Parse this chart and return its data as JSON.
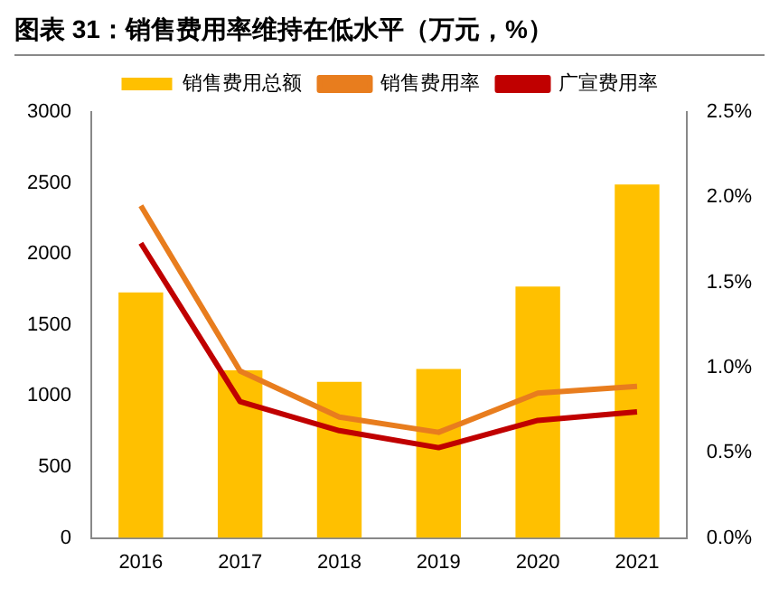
{
  "chart_data": {
    "type": "bar",
    "title": "图表 31：销售费用率维持在低水平（万元，%）",
    "categories": [
      "2016",
      "2017",
      "2018",
      "2019",
      "2020",
      "2021"
    ],
    "series": [
      {
        "name": "销售费用总额",
        "color": "#ffc000",
        "values": [
          1730,
          1180,
          1100,
          1190,
          1770,
          2490
        ]
      },
      {
        "name": "销售费用率",
        "type": "line",
        "axis": "y2",
        "color": "#e87d1e",
        "values": [
          1.95,
          0.98,
          0.71,
          0.62,
          0.85,
          0.89
        ]
      },
      {
        "name": "广宣费用率",
        "type": "line",
        "axis": "y2",
        "color": "#c00000",
        "values": [
          1.73,
          0.8,
          0.63,
          0.53,
          0.69,
          0.74
        ]
      }
    ],
    "ylim": [
      0,
      3000
    ],
    "yticks": [
      0,
      500,
      1000,
      1500,
      2000,
      2500,
      3000
    ],
    "y2lim": [
      0,
      2.5
    ],
    "y2ticks": [
      {
        "value": 0,
        "label": "0.0%"
      },
      {
        "value": 0.5,
        "label": "0.5%"
      },
      {
        "value": 1,
        "label": "1.0%"
      },
      {
        "value": 1.5,
        "label": "1.5%"
      },
      {
        "value": 2,
        "label": "2.0%"
      },
      {
        "value": 2.5,
        "label": "2.5%"
      }
    ],
    "grid": false,
    "legend": "top",
    "marker": "none"
  }
}
